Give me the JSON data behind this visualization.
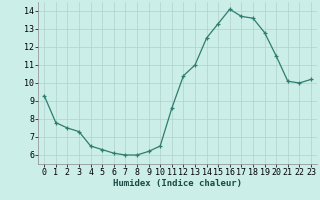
{
  "x": [
    0,
    1,
    2,
    3,
    4,
    5,
    6,
    7,
    8,
    9,
    10,
    11,
    12,
    13,
    14,
    15,
    16,
    17,
    18,
    19,
    20,
    21,
    22,
    23
  ],
  "y": [
    9.3,
    7.8,
    7.5,
    7.3,
    6.5,
    6.3,
    6.1,
    6.0,
    6.0,
    6.2,
    6.5,
    8.6,
    10.4,
    11.0,
    12.5,
    13.3,
    14.1,
    13.7,
    13.6,
    12.8,
    11.5,
    10.1,
    10.0,
    10.2
  ],
  "xlabel": "Humidex (Indice chaleur)",
  "xlim": [
    -0.5,
    23.5
  ],
  "ylim": [
    5.5,
    14.5
  ],
  "yticks": [
    6,
    7,
    8,
    9,
    10,
    11,
    12,
    13,
    14
  ],
  "xticks": [
    0,
    1,
    2,
    3,
    4,
    5,
    6,
    7,
    8,
    9,
    10,
    11,
    12,
    13,
    14,
    15,
    16,
    17,
    18,
    19,
    20,
    21,
    22,
    23
  ],
  "line_color": "#2e7d6e",
  "marker": "+",
  "bg_color": "#cceee8",
  "grid_color": "#b0d0cc",
  "label_fontsize": 6.5,
  "tick_fontsize": 6
}
